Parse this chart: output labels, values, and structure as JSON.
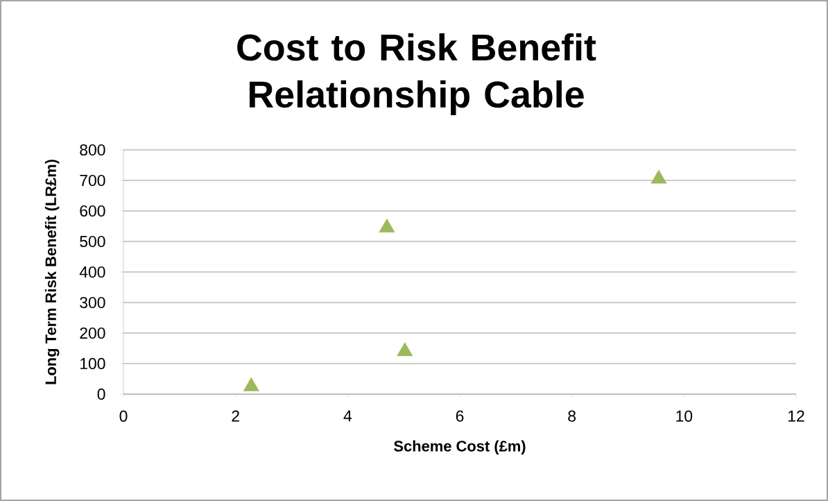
{
  "chart_data": {
    "type": "scatter",
    "title": "Cost to Risk Benefit Relationship Cable",
    "xlabel": "Scheme Cost  (£m)",
    "ylabel": "Long Term Risk Benefit (LR£m)",
    "series": [
      {
        "color": "#9bbb59",
        "x": [
          2.28,
          4.7,
          5.02,
          9.55
        ],
        "values": [
          25,
          545,
          140,
          705
        ]
      }
    ],
    "xlim": [
      0,
      12
    ],
    "xticks": [
      0,
      2,
      4,
      6,
      8,
      10,
      12
    ],
    "ylim": [
      0,
      800
    ],
    "yticks": [
      0,
      100,
      200,
      300,
      400,
      500,
      600,
      700,
      800
    ],
    "grid": "y",
    "marker": "triangle"
  }
}
